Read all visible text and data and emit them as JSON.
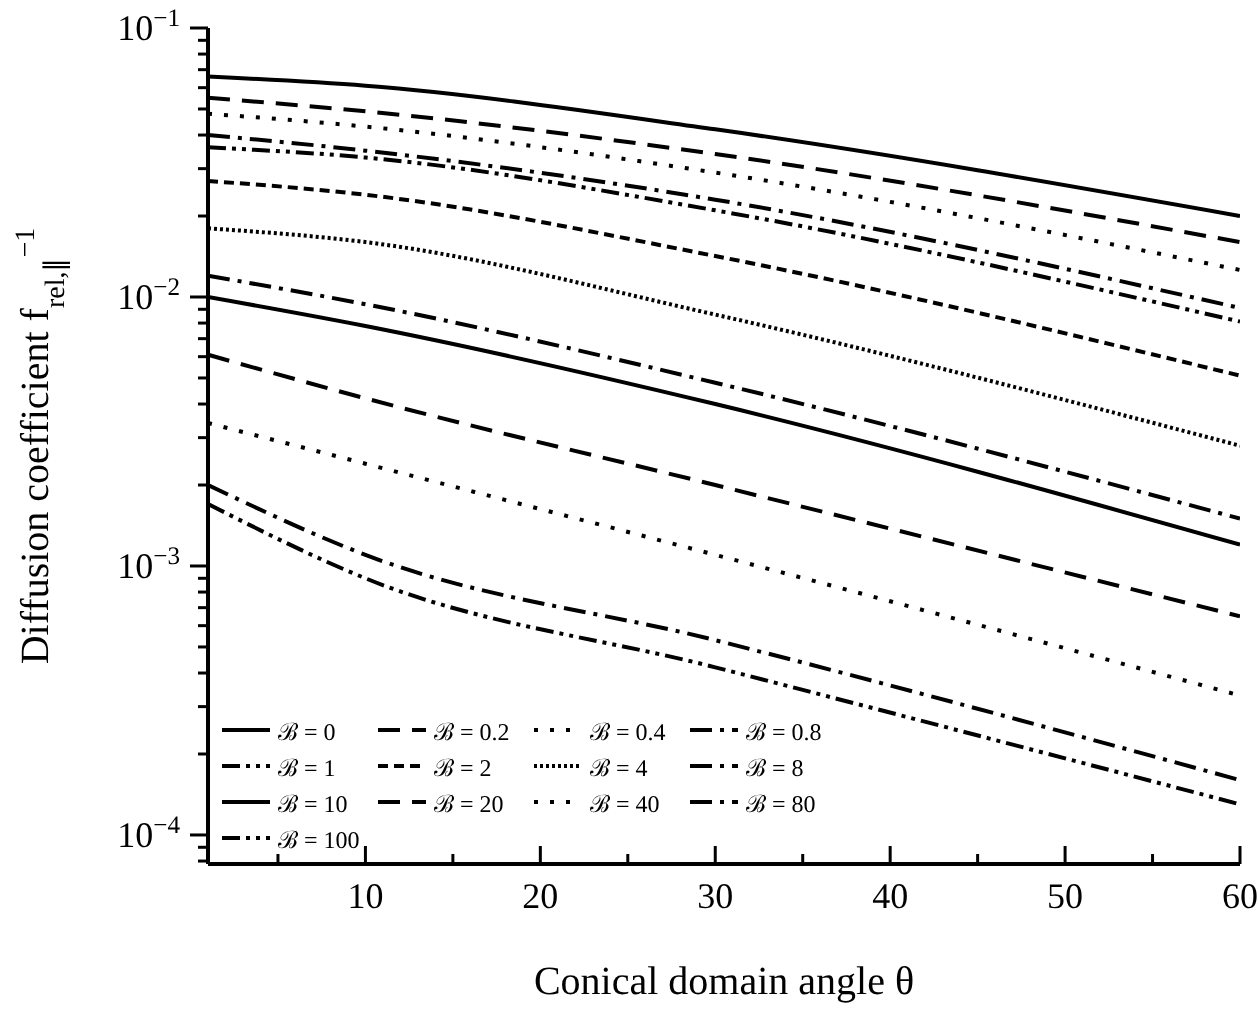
{
  "chart_data": {
    "type": "line",
    "xlabel": "Conical domain angle θ",
    "ylabel": "Diffusion coefficient f$_{rel,∥}$$^{−1}$",
    "x": [
      1,
      10,
      30,
      60
    ],
    "log": "y",
    "xlim": [
      1,
      60
    ],
    "ylim": [
      7.8e-05,
      0.1
    ],
    "xticks": [
      {
        "value": 5,
        "label": null
      },
      10,
      {
        "value": 15,
        "label": null
      },
      20,
      {
        "value": 25,
        "label": null
      },
      30,
      {
        "value": 35,
        "label": null
      },
      40,
      {
        "value": 45,
        "label": null
      },
      50,
      {
        "value": 55,
        "label": null
      },
      60
    ],
    "yticks": [
      {
        "value": 8e-05,
        "label": null
      },
      {
        "value": 9e-05,
        "label": null
      },
      {
        "value": 0.0001,
        "label": "10$^{−4}$"
      },
      {
        "value": 0.0002,
        "label": null
      },
      {
        "value": 0.0003,
        "label": null
      },
      {
        "value": 0.0004,
        "label": null
      },
      {
        "value": 0.0005,
        "label": null
      },
      {
        "value": 0.0006,
        "label": null
      },
      {
        "value": 0.0007,
        "label": null
      },
      {
        "value": 0.0008,
        "label": null
      },
      {
        "value": 0.0009,
        "label": null
      },
      {
        "value": 0.001,
        "label": "10$^{−3}$"
      },
      {
        "value": 0.002,
        "label": null
      },
      {
        "value": 0.003,
        "label": null
      },
      {
        "value": 0.004,
        "label": null
      },
      {
        "value": 0.005,
        "label": null
      },
      {
        "value": 0.006,
        "label": null
      },
      {
        "value": 0.007,
        "label": null
      },
      {
        "value": 0.008,
        "label": null
      },
      {
        "value": 0.009,
        "label": null
      },
      {
        "value": 0.01,
        "label": "10$^{−2}$"
      },
      {
        "value": 0.02,
        "label": null
      },
      {
        "value": 0.03,
        "label": null
      },
      {
        "value": 0.04,
        "label": null
      },
      {
        "value": 0.05,
        "label": null
      },
      {
        "value": 0.06,
        "label": null
      },
      {
        "value": 0.07,
        "label": null
      },
      {
        "value": 0.08,
        "label": null
      },
      {
        "value": 0.09,
        "label": null
      },
      {
        "value": 0.1,
        "label": "10$^{−1}$"
      }
    ],
    "grid": false,
    "legend": "bottom left",
    "marker": "none",
    "series": [
      {
        "name": "ℬ = 0",
        "color": "#000000",
        "line_style": "solid",
        "values": [
          0.066,
          0.061,
          0.042,
          0.02
        ]
      },
      {
        "name": "ℬ = 0.2",
        "color": "#000000",
        "line_style": "dashed",
        "values": [
          0.055,
          0.049,
          0.034,
          0.016
        ]
      },
      {
        "name": "ℬ = 0.4",
        "color": "#000000",
        "line_style": "dotted",
        "values": [
          0.048,
          0.043,
          0.029,
          0.0126
        ]
      },
      {
        "name": "ℬ = 0.8",
        "color": "#000000",
        "line_style": "dashdot",
        "values": [
          0.04,
          0.035,
          0.023,
          0.0091
        ]
      },
      {
        "name": "ℬ = 1",
        "color": "#000000",
        "line_style": "dashdotdot",
        "values": [
          0.036,
          0.033,
          0.021,
          0.0081
        ]
      },
      {
        "name": "ℬ = 2",
        "color": "#000000",
        "line_style": "shortdash",
        "values": [
          0.027,
          0.024,
          0.0142,
          0.0051
        ]
      },
      {
        "name": "ℬ = 4",
        "color": "#000000",
        "line_style": "densedotted",
        "values": [
          0.018,
          0.016,
          0.0086,
          0.0028
        ]
      },
      {
        "name": "ℬ = 8",
        "color": "#000000",
        "line_style": "dashdot",
        "values": [
          0.012,
          0.0094,
          0.0048,
          0.0015
        ]
      },
      {
        "name": "ℬ = 10",
        "color": "#000000",
        "line_style": "solid",
        "values": [
          0.01,
          0.0078,
          0.004,
          0.0012
        ]
      },
      {
        "name": "ℬ = 20",
        "color": "#000000",
        "line_style": "dashed",
        "values": [
          0.0061,
          0.0042,
          0.002,
          0.00065
        ]
      },
      {
        "name": "ℬ = 40",
        "color": "#000000",
        "line_style": "dotted",
        "values": [
          0.0034,
          0.0024,
          0.0011,
          0.00033
        ]
      },
      {
        "name": "ℬ = 80",
        "color": "#000000",
        "line_style": "dashdot",
        "values": [
          0.002,
          0.0011,
          0.00053,
          0.00016
        ]
      },
      {
        "name": "ℬ = 100",
        "color": "#000000",
        "line_style": "dashdotdot",
        "values": [
          0.0017,
          0.0009,
          0.00042,
          0.00013
        ]
      }
    ]
  }
}
